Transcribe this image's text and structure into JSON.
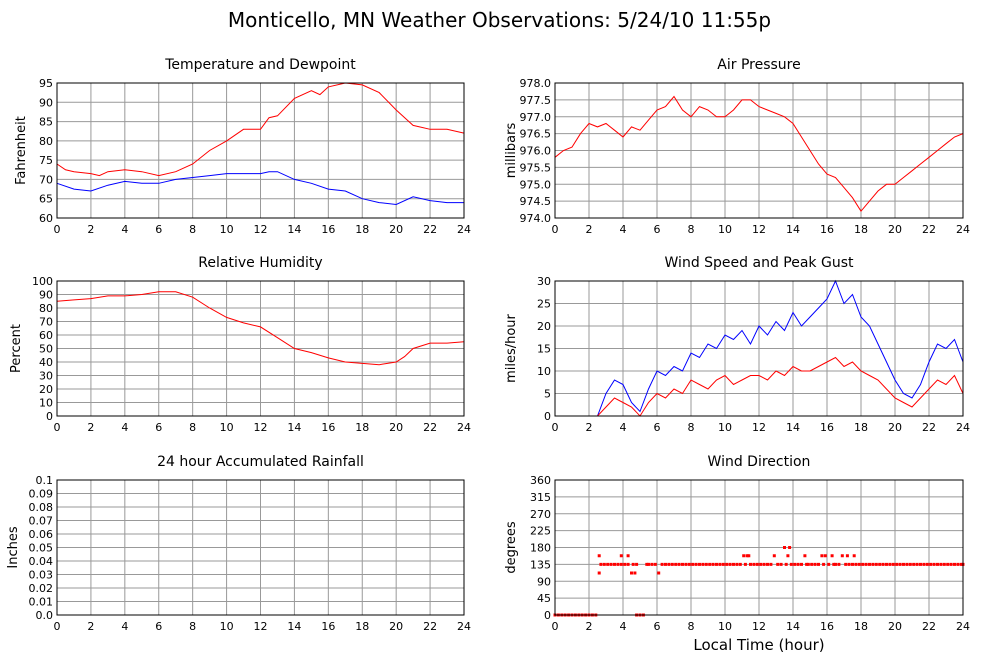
{
  "title": "Monticello, MN Weather Observations: 5/24/10 11:55p",
  "xlabel": "Local Time (hour)",
  "colors": {
    "red": "#ff0000",
    "blue": "#0000ff",
    "grid": "#999999",
    "frame": "#000000"
  },
  "chart_data": [
    {
      "id": "temp",
      "type": "line",
      "title": "Temperature and Dewpoint",
      "ylabel": "Fahrenheit",
      "xlim": [
        0,
        24
      ],
      "ylim": [
        60,
        95
      ],
      "xticks": [
        0,
        2,
        4,
        6,
        8,
        10,
        12,
        14,
        16,
        18,
        20,
        22,
        24
      ],
      "yticks": [
        60,
        65,
        70,
        75,
        80,
        85,
        90,
        95
      ],
      "series": [
        {
          "color": "red",
          "x": [
            0,
            0.5,
            1,
            2,
            2.5,
            3,
            4,
            5,
            6,
            7,
            8,
            9,
            10,
            11,
            12,
            12.5,
            13,
            14,
            15,
            15.5,
            16,
            17,
            18,
            19,
            20,
            21,
            22,
            23,
            24
          ],
          "values": [
            74,
            72.5,
            72,
            71.5,
            71,
            72,
            72.5,
            72,
            71,
            72,
            74,
            77.5,
            80,
            83,
            83,
            86,
            86.5,
            91,
            93,
            92,
            94,
            95,
            94.5,
            92.5,
            88,
            84,
            83,
            83,
            82
          ]
        },
        {
          "color": "blue",
          "x": [
            0,
            1,
            2,
            3,
            4,
            5,
            6,
            7,
            8,
            9,
            10,
            11,
            12,
            12.5,
            13,
            14,
            15,
            16,
            17,
            18,
            19,
            20,
            21,
            22,
            23,
            24
          ],
          "values": [
            69,
            67.5,
            67,
            68.5,
            69.5,
            69,
            69,
            70,
            70.5,
            71,
            71.5,
            71.5,
            71.5,
            72,
            72,
            70,
            69,
            67.5,
            67,
            65,
            64,
            63.5,
            65.5,
            64.5,
            64,
            64
          ]
        }
      ]
    },
    {
      "id": "pressure",
      "type": "line",
      "title": "Air Pressure",
      "ylabel": "millibars",
      "xlim": [
        0,
        24
      ],
      "ylim": [
        974.0,
        978.0
      ],
      "xticks": [
        0,
        2,
        4,
        6,
        8,
        10,
        12,
        14,
        16,
        18,
        20,
        22,
        24
      ],
      "yticks": [
        "974.0",
        "974.5",
        "975.0",
        "975.5",
        "976.0",
        "976.5",
        "977.0",
        "977.5",
        "978.0"
      ],
      "series": [
        {
          "color": "red",
          "x": [
            0,
            0.5,
            1,
            1.5,
            2,
            2.5,
            3,
            3.5,
            4,
            4.5,
            5,
            5.5,
            6,
            6.5,
            7,
            7.5,
            8,
            8.5,
            9,
            9.5,
            10,
            10.5,
            11,
            11.5,
            12,
            12.5,
            13,
            13.5,
            14,
            14.5,
            15,
            15.5,
            16,
            16.5,
            17,
            17.5,
            18,
            18.5,
            19,
            19.5,
            20,
            20.5,
            21,
            21.5,
            22,
            22.5,
            23,
            23.5,
            24
          ],
          "values": [
            975.8,
            976.0,
            976.1,
            976.5,
            976.8,
            976.7,
            976.8,
            976.6,
            976.4,
            976.7,
            976.6,
            976.9,
            977.2,
            977.3,
            977.6,
            977.2,
            977.0,
            977.3,
            977.2,
            977.0,
            977.0,
            977.2,
            977.5,
            977.5,
            977.3,
            977.2,
            977.1,
            977.0,
            976.8,
            976.4,
            976.0,
            975.6,
            975.3,
            975.2,
            974.9,
            974.6,
            974.2,
            974.5,
            974.8,
            975.0,
            975.0,
            975.2,
            975.4,
            975.6,
            975.8,
            976.0,
            976.2,
            976.4,
            976.5
          ]
        }
      ]
    },
    {
      "id": "humidity",
      "type": "line",
      "title": "Relative Humidity",
      "ylabel": "Percent",
      "xlim": [
        0,
        24
      ],
      "ylim": [
        0,
        100
      ],
      "xticks": [
        0,
        2,
        4,
        6,
        8,
        10,
        12,
        14,
        16,
        18,
        20,
        22,
        24
      ],
      "yticks": [
        0,
        10,
        20,
        30,
        40,
        50,
        60,
        70,
        80,
        90,
        100
      ],
      "series": [
        {
          "color": "red",
          "x": [
            0,
            1,
            2,
            3,
            4,
            5,
            6,
            7,
            8,
            9,
            10,
            11,
            12,
            13,
            14,
            15,
            16,
            17,
            18,
            19,
            20,
            20.5,
            21,
            22,
            23,
            24
          ],
          "values": [
            85,
            86,
            87,
            89,
            89,
            90,
            92,
            92,
            88,
            80,
            73,
            69,
            66,
            58,
            50,
            47,
            43,
            40,
            39,
            38,
            40,
            44,
            50,
            54,
            54,
            55
          ]
        }
      ]
    },
    {
      "id": "wind",
      "type": "line",
      "title": "Wind Speed and Peak Gust",
      "ylabel": "miles/hour",
      "xlim": [
        0,
        24
      ],
      "ylim": [
        0,
        30
      ],
      "xticks": [
        0,
        2,
        4,
        6,
        8,
        10,
        12,
        14,
        16,
        18,
        20,
        22,
        24
      ],
      "yticks": [
        0,
        5,
        10,
        15,
        20,
        25,
        30
      ],
      "series": [
        {
          "color": "blue",
          "x": [
            0,
            2.5,
            3,
            3.5,
            4,
            4.5,
            5,
            5.5,
            6,
            6.5,
            7,
            7.5,
            8,
            8.5,
            9,
            9.5,
            10,
            10.5,
            11,
            11.5,
            12,
            12.5,
            13,
            13.5,
            14,
            14.5,
            15,
            15.5,
            16,
            16.5,
            17,
            17.5,
            18,
            18.5,
            19,
            19.5,
            20,
            20.5,
            21,
            21.5,
            22,
            22.5,
            23,
            23.5,
            24
          ],
          "values": [
            0,
            0,
            5,
            8,
            7,
            3,
            1,
            6,
            10,
            9,
            11,
            10,
            14,
            13,
            16,
            15,
            18,
            17,
            19,
            16,
            20,
            18,
            21,
            19,
            23,
            20,
            22,
            24,
            26,
            30,
            25,
            27,
            22,
            20,
            16,
            12,
            8,
            5,
            4,
            7,
            12,
            16,
            15,
            17,
            12
          ]
        },
        {
          "color": "red",
          "x": [
            0,
            2.5,
            3,
            3.5,
            4,
            4.5,
            5,
            5.5,
            6,
            6.5,
            7,
            7.5,
            8,
            8.5,
            9,
            9.5,
            10,
            10.5,
            11,
            11.5,
            12,
            12.5,
            13,
            13.5,
            14,
            14.5,
            15,
            15.5,
            16,
            16.5,
            17,
            17.5,
            18,
            18.5,
            19,
            19.5,
            20,
            20.5,
            21,
            21.5,
            22,
            22.5,
            23,
            23.5,
            24
          ],
          "values": [
            0,
            0,
            2,
            4,
            3,
            2,
            0,
            3,
            5,
            4,
            6,
            5,
            8,
            7,
            6,
            8,
            9,
            7,
            8,
            9,
            9,
            8,
            10,
            9,
            11,
            10,
            10,
            11,
            12,
            13,
            11,
            12,
            10,
            9,
            8,
            6,
            4,
            3,
            2,
            4,
            6,
            8,
            7,
            9,
            5
          ]
        }
      ]
    },
    {
      "id": "rain",
      "type": "line",
      "title": "24 hour Accumulated Rainfall",
      "ylabel": "Inches",
      "xlim": [
        0,
        24
      ],
      "ylim": [
        0.0,
        0.1
      ],
      "xticks": [
        0,
        2,
        4,
        6,
        8,
        10,
        12,
        14,
        16,
        18,
        20,
        22,
        24
      ],
      "yticks": [
        "0.0",
        "0.01",
        "0.02",
        "0.03",
        "0.04",
        "0.05",
        "0.06",
        "0.07",
        "0.08",
        "0.09",
        "0.1"
      ],
      "series": [
        {
          "color": "red",
          "x": [
            0,
            24
          ],
          "values": [
            0,
            0
          ]
        }
      ]
    },
    {
      "id": "direction",
      "type": "scatter",
      "title": "Wind Direction",
      "ylabel": "degrees",
      "xlim": [
        0,
        24
      ],
      "ylim": [
        0,
        360
      ],
      "xticks": [
        0,
        2,
        4,
        6,
        8,
        10,
        12,
        14,
        16,
        18,
        20,
        22,
        24
      ],
      "yticks": [
        0,
        45,
        90,
        135,
        180,
        225,
        270,
        315,
        360
      ],
      "series": [
        {
          "color": "red",
          "x": [
            0,
            0.2,
            0.4,
            0.6,
            0.8,
            1.0,
            1.2,
            1.4,
            1.6,
            1.8,
            2.0,
            2.2,
            2.4,
            2.6,
            2.6,
            2.7,
            2.9,
            3.1,
            3.3,
            3.5,
            3.7,
            3.9,
            3.9,
            4.1,
            4.3,
            4.3,
            4.5,
            4.6,
            4.7,
            4.8,
            4.8,
            5.0,
            5.2,
            5.4,
            5.5,
            5.7,
            5.9,
            6.1,
            6.3,
            6.5,
            6.7,
            6.9,
            7.1,
            7.3,
            7.5,
            7.7,
            7.9,
            8.1,
            8.3,
            8.5,
            8.7,
            8.9,
            9.1,
            9.3,
            9.5,
            9.7,
            9.9,
            10.1,
            10.3,
            10.5,
            10.7,
            10.9,
            11.1,
            11.2,
            11.3,
            11.4,
            11.5,
            11.7,
            11.9,
            12.1,
            12.3,
            12.5,
            12.7,
            12.9,
            13.1,
            13.3,
            13.5,
            13.6,
            13.7,
            13.8,
            13.9,
            14.1,
            14.3,
            14.5,
            14.7,
            14.8,
            14.9,
            15.1,
            15.3,
            15.5,
            15.7,
            15.8,
            15.9,
            16.1,
            16.3,
            16.4,
            16.5,
            16.7,
            16.9,
            17.1,
            17.2,
            17.3,
            17.5,
            17.6,
            17.7,
            17.9,
            18.1,
            18.3,
            18.5,
            18.7,
            18.9,
            19.1,
            19.3,
            19.5,
            19.7,
            19.9,
            20.1,
            20.3,
            20.5,
            20.7,
            20.9,
            21.1,
            21.3,
            21.5,
            21.7,
            21.9,
            22.1,
            22.3,
            22.5,
            22.7,
            22.9,
            23.1,
            23.3,
            23.5,
            23.7,
            23.9,
            24
          ],
          "values": [
            0,
            0,
            0,
            0,
            0,
            0,
            0,
            0,
            0,
            0,
            0,
            0,
            0,
            158,
            112,
            135,
            135,
            135,
            135,
            135,
            135,
            158,
            135,
            135,
            158,
            135,
            112,
            135,
            112,
            0,
            135,
            0,
            0,
            135,
            135,
            135,
            135,
            112,
            135,
            135,
            135,
            135,
            135,
            135,
            135,
            135,
            135,
            135,
            135,
            135,
            135,
            135,
            135,
            135,
            135,
            135,
            135,
            135,
            135,
            135,
            135,
            135,
            158,
            135,
            158,
            158,
            135,
            135,
            135,
            135,
            135,
            135,
            135,
            158,
            135,
            135,
            180,
            135,
            158,
            180,
            135,
            135,
            135,
            135,
            158,
            135,
            135,
            135,
            135,
            135,
            158,
            135,
            158,
            135,
            158,
            135,
            135,
            135,
            158,
            135,
            158,
            135,
            135,
            158,
            135,
            135,
            135,
            135,
            135,
            135,
            135,
            135,
            135,
            135,
            135,
            135,
            135,
            135,
            135,
            135,
            135,
            135,
            135,
            135,
            135,
            135,
            135,
            135,
            135,
            135,
            135,
            135,
            135,
            135,
            135,
            135,
            135
          ]
        }
      ]
    }
  ]
}
